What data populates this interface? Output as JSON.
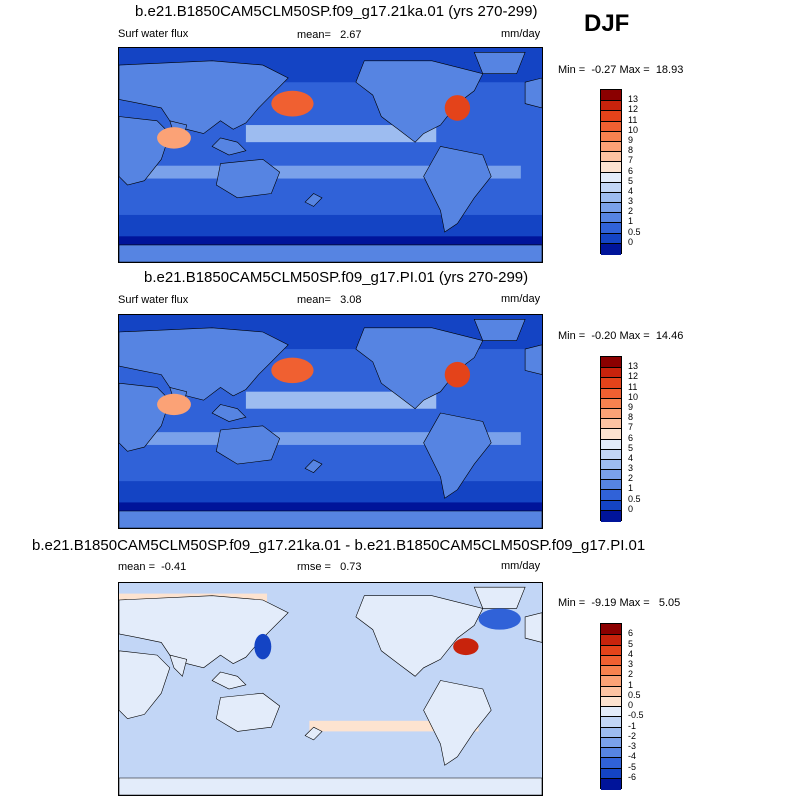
{
  "season": "DJF",
  "panels": [
    {
      "title": "b.e21.B1850CAM5CLM50SP.f09_g17.21ka.01 (yrs 270-299)",
      "left_label": "Surf water flux",
      "stat_text": "mean=   2.67",
      "units": "mm/day",
      "minmax": "Min =  -0.27 Max =  18.93",
      "colorbar_labels": [
        "13",
        "12",
        "11",
        "10",
        "9",
        "8",
        "7",
        "6",
        "5",
        "4",
        "3",
        "2",
        "1",
        "0.5",
        "0"
      ],
      "colorbar_colors": [
        "#8b0000",
        "#c8230c",
        "#e4431a",
        "#f06031",
        "#f7824f",
        "#fba276",
        "#fdc3a2",
        "#fde3d0",
        "#e3ecfa",
        "#c2d6f6",
        "#9dbcf0",
        "#7aa1ea",
        "#5684e2",
        "#3062d8",
        "#1444c4",
        "#00149a"
      ]
    },
    {
      "title": "b.e21.B1850CAM5CLM50SP.f09_g17.PI.01 (yrs 270-299)",
      "left_label": "Surf water flux",
      "stat_text": "mean=   3.08",
      "units": "mm/day",
      "minmax": "Min =  -0.20 Max =  14.46",
      "colorbar_labels": [
        "13",
        "12",
        "11",
        "10",
        "9",
        "8",
        "7",
        "6",
        "5",
        "4",
        "3",
        "2",
        "1",
        "0.5",
        "0"
      ],
      "colorbar_colors": [
        "#8b0000",
        "#c8230c",
        "#e4431a",
        "#f06031",
        "#f7824f",
        "#fba276",
        "#fdc3a2",
        "#fde3d0",
        "#e3ecfa",
        "#c2d6f6",
        "#9dbcf0",
        "#7aa1ea",
        "#5684e2",
        "#3062d8",
        "#1444c4",
        "#00149a"
      ]
    },
    {
      "title": "b.e21.B1850CAM5CLM50SP.f09_g17.21ka.01 - b.e21.B1850CAM5CLM50SP.f09_g17.PI.01",
      "left_label": "mean =  -0.41",
      "stat_text": "rmse =   0.73",
      "units": "mm/day",
      "minmax": "Min =  -9.19 Max =   5.05",
      "colorbar_labels": [
        "6",
        "5",
        "4",
        "3",
        "2",
        "1",
        "0.5",
        "0",
        "-0.5",
        "-1",
        "-2",
        "-3",
        "-4",
        "-5",
        "-6"
      ],
      "colorbar_colors": [
        "#8b0000",
        "#c8230c",
        "#e4431a",
        "#f06031",
        "#f7824f",
        "#fba276",
        "#fdc3a2",
        "#fde3d0",
        "#e3ecfa",
        "#c2d6f6",
        "#9dbcf0",
        "#7aa1ea",
        "#5684e2",
        "#3062d8",
        "#1444c4",
        "#00149a"
      ]
    }
  ],
  "chart_data": [
    {
      "type": "heatmap",
      "title": "b.e21.B1850CAM5CLM50SP.f09_g17.21ka.01 (yrs 270-299)",
      "variable": "Surf water flux",
      "units": "mm/day",
      "mean": 2.67,
      "min": -0.27,
      "max": 18.93,
      "levels": [
        0,
        0.5,
        1,
        2,
        3,
        4,
        5,
        6,
        7,
        8,
        9,
        10,
        11,
        12,
        13
      ]
    },
    {
      "type": "heatmap",
      "title": "b.e21.B1850CAM5CLM50SP.f09_g17.PI.01 (yrs 270-299)",
      "variable": "Surf water flux",
      "units": "mm/day",
      "mean": 3.08,
      "min": -0.2,
      "max": 14.46,
      "levels": [
        0,
        0.5,
        1,
        2,
        3,
        4,
        5,
        6,
        7,
        8,
        9,
        10,
        11,
        12,
        13
      ]
    },
    {
      "type": "heatmap",
      "title": "b.e21.B1850CAM5CLM50SP.f09_g17.21ka.01 - b.e21.B1850CAM5CLM50SP.f09_g17.PI.01",
      "units": "mm/day",
      "mean": -0.41,
      "rmse": 0.73,
      "min": -9.19,
      "max": 5.05,
      "levels": [
        -6,
        -5,
        -4,
        -3,
        -2,
        -1,
        -0.5,
        0,
        0.5,
        1,
        2,
        3,
        4,
        5,
        6
      ]
    }
  ]
}
